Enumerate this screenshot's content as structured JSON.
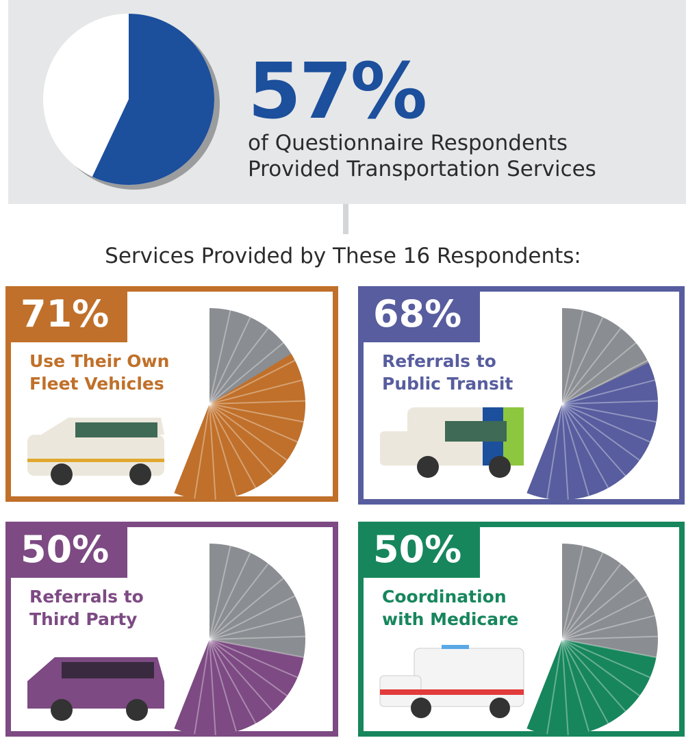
{
  "heading": "Services Provided by These 16 Respondents:",
  "chart_data": [
    {
      "type": "pie",
      "value": 57,
      "value_label": "57%",
      "label": "of Questionnaire Respondents Provided Transportation Services",
      "color": "#1c4f9c"
    },
    {
      "type": "half-pie",
      "value": 71,
      "value_label": "71%",
      "label": "Use Their Own Fleet Vehicles",
      "color": "#c0702a"
    },
    {
      "type": "half-pie",
      "value": 68,
      "value_label": "68%",
      "label": "Referrals to Public Transit",
      "color": "#575d9e"
    },
    {
      "type": "half-pie",
      "value": 50,
      "value_label": "50%",
      "label": "Referrals to Third Party",
      "color": "#7d4a83"
    },
    {
      "type": "half-pie",
      "value": 50,
      "value_label": "50%",
      "label": "Coordination with Medicare",
      "color": "#17865c"
    }
  ]
}
